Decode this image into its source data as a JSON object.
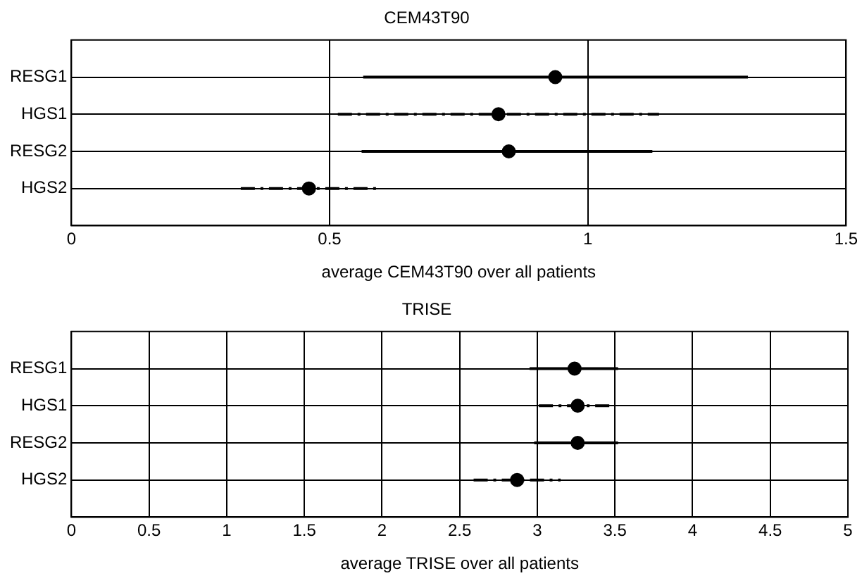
{
  "chart_data": [
    {
      "type": "scatter",
      "orientation": "horizontal",
      "title": "CEM43T90",
      "xlabel": "average CEM43T90 over all patients",
      "categories": [
        "RESG1",
        "HGS1",
        "RESG2",
        "HGS2"
      ],
      "xlim": [
        0,
        1.5
      ],
      "xticks": [
        0,
        0.5,
        1,
        1.5
      ],
      "grid": true,
      "marker": "circle",
      "series": [
        {
          "color": "#000000",
          "line_style": "solid",
          "values": [
            0.937,
            null,
            0.847,
            null
          ],
          "errors": [
            [
              0.565,
              1.31
            ],
            null,
            [
              0.562,
              1.125
            ],
            null
          ]
        },
        {
          "color": "#000000",
          "line_style": "dashed",
          "values": [
            null,
            0.827,
            null,
            0.46
          ],
          "errors": [
            null,
            [
              0.516,
              1.138
            ],
            null,
            [
              0.328,
              0.591
            ]
          ]
        }
      ]
    },
    {
      "type": "scatter",
      "orientation": "horizontal",
      "title": "TRISE",
      "xlabel": "average TRISE over all patients",
      "categories": [
        "RESG1",
        "HGS1",
        "RESG2",
        "HGS2"
      ],
      "xlim": [
        0,
        5
      ],
      "xticks": [
        0,
        0.5,
        1,
        1.5,
        2,
        2.5,
        3,
        3.5,
        4,
        4.5,
        5
      ],
      "grid": true,
      "marker": "circle",
      "series": [
        {
          "color": "#000000",
          "line_style": "solid",
          "values": [
            3.24,
            null,
            3.26,
            null
          ],
          "errors": [
            [
              2.95,
              3.52
            ],
            null,
            [
              2.98,
              3.52
            ],
            null
          ]
        },
        {
          "color": "#000000",
          "line_style": "dashed",
          "values": [
            null,
            3.26,
            null,
            2.87
          ],
          "errors": [
            null,
            [
              3.01,
              3.5
            ],
            null,
            [
              2.59,
              3.15
            ]
          ]
        }
      ]
    }
  ]
}
